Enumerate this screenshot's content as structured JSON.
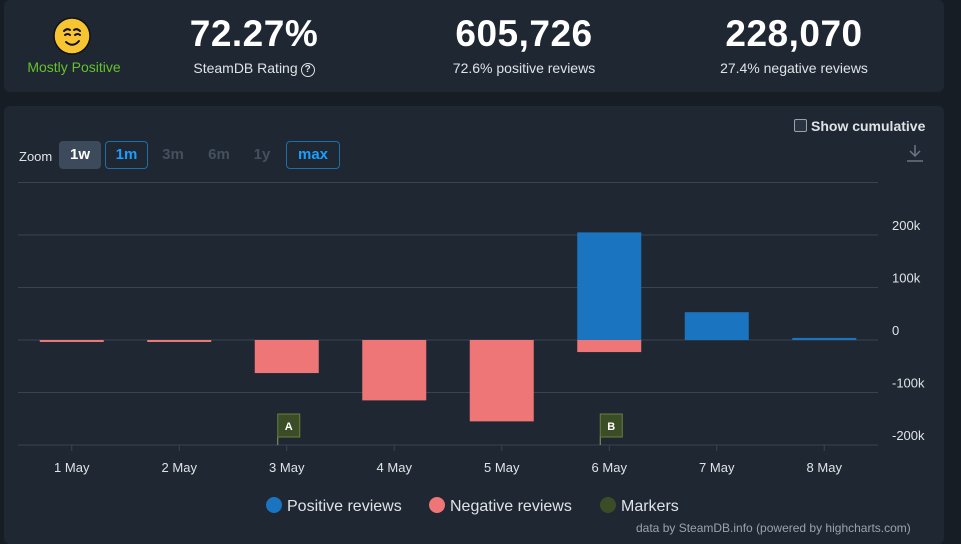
{
  "summary": {
    "rating_label": "Mostly Positive",
    "rating_icon": "smiling-face-icon",
    "steamdb_rating": "72.27%",
    "steamdb_rating_label": "SteamDB Rating",
    "positive_count": "605,726",
    "positive_label": "72.6% positive reviews",
    "negative_count": "228,070",
    "negative_label": "27.4% negative reviews",
    "help_glyph": "?"
  },
  "controls": {
    "zoom_label": "Zoom",
    "zoom_options": [
      "1w",
      "1m",
      "3m",
      "6m",
      "1y",
      "max"
    ],
    "zoom_selected": "1w",
    "cumulative_label": "Show cumulative",
    "cumulative_checked": false
  },
  "chart_data": {
    "type": "bar",
    "categories": [
      "1 May",
      "2 May",
      "3 May",
      "4 May",
      "5 May",
      "6 May",
      "7 May",
      "8 May"
    ],
    "series": [
      {
        "name": "Positive reviews",
        "color": "#1b74c0",
        "values": [
          0,
          0,
          0,
          0,
          0,
          205000,
          53000,
          4000
        ]
      },
      {
        "name": "Negative reviews",
        "color": "#ee7676",
        "values": [
          -2000,
          -2000,
          -63000,
          -115000,
          -155000,
          -23000,
          0,
          0
        ]
      }
    ],
    "markers": {
      "name": "Markers",
      "color": "#3b4d27",
      "points": [
        {
          "x": "3 May",
          "label": "A"
        },
        {
          "x": "6 May",
          "label": "B"
        }
      ]
    },
    "yaxis": {
      "ticks": [
        "200k",
        "100k",
        "0",
        "-100k",
        "-200k"
      ],
      "tick_values": [
        200000,
        100000,
        0,
        -100000,
        -200000
      ],
      "ylim": [
        -200000,
        300000
      ],
      "position": "right"
    },
    "grid": true,
    "legend": "bottom-center"
  },
  "credits": "data by SteamDB.info (powered by highcharts.com)",
  "colors": {
    "background": "#171d25",
    "panel": "#1f2733",
    "accent": "#1a9fff",
    "positive_green": "#66c22b"
  }
}
